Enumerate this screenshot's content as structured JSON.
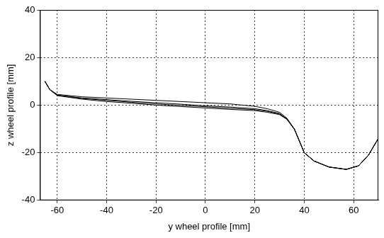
{
  "chart_data": {
    "type": "line",
    "x_label": "y wheel profile [mm]",
    "y_label": "z wheel profile [mm]",
    "x": [
      -65,
      -63,
      -60,
      -50,
      -40,
      -30,
      -20,
      -10,
      0,
      10,
      20,
      25,
      30,
      33,
      36,
      38,
      40,
      44,
      50,
      57,
      62,
      66,
      70
    ],
    "series": [
      {
        "color": "#000000",
        "values": [
          10,
          6.5,
          4.5,
          3.5,
          3,
          2.5,
          2,
          1.5,
          1,
          0.5,
          -0.5,
          -1.5,
          -3,
          -5.5,
          -10,
          -15,
          -20,
          -23.5,
          -26,
          -27,
          -25.5,
          -21,
          -14
        ]
      },
      {
        "color": "#000000",
        "values": [
          10,
          6.5,
          4.2,
          3,
          2.3,
          1.6,
          1,
          0.4,
          -0.3,
          -0.8,
          -1.5,
          -2.3,
          -3.5,
          -5.8,
          -10,
          -15,
          -20,
          -23.5,
          -26,
          -27,
          -25.5,
          -21,
          -14
        ]
      },
      {
        "color": "#000000",
        "values": [
          10,
          6.5,
          4,
          2.5,
          1.5,
          0.8,
          0,
          -0.6,
          -1.2,
          -1.8,
          -2.3,
          -3,
          -4,
          -6,
          -10.2,
          -15,
          -20,
          -23.5,
          -26,
          -27,
          -25.5,
          -21,
          -14
        ]
      },
      {
        "color": "#000000",
        "values": [
          10,
          6.5,
          4.1,
          2.8,
          2,
          1.2,
          0.5,
          -0.1,
          -0.7,
          -1.3,
          -1.9,
          -2.6,
          -3.7,
          -5.9,
          -10.1,
          -15,
          -20,
          -23.5,
          -26,
          -27,
          -25.5,
          -21,
          -14
        ]
      }
    ],
    "xlim": [
      -67,
      70
    ],
    "ylim": [
      -40,
      40
    ],
    "xticks": [
      -60,
      -40,
      -20,
      0,
      20,
      40,
      60
    ],
    "yticks": [
      -40,
      -20,
      0,
      20,
      40
    ],
    "grid": true
  }
}
